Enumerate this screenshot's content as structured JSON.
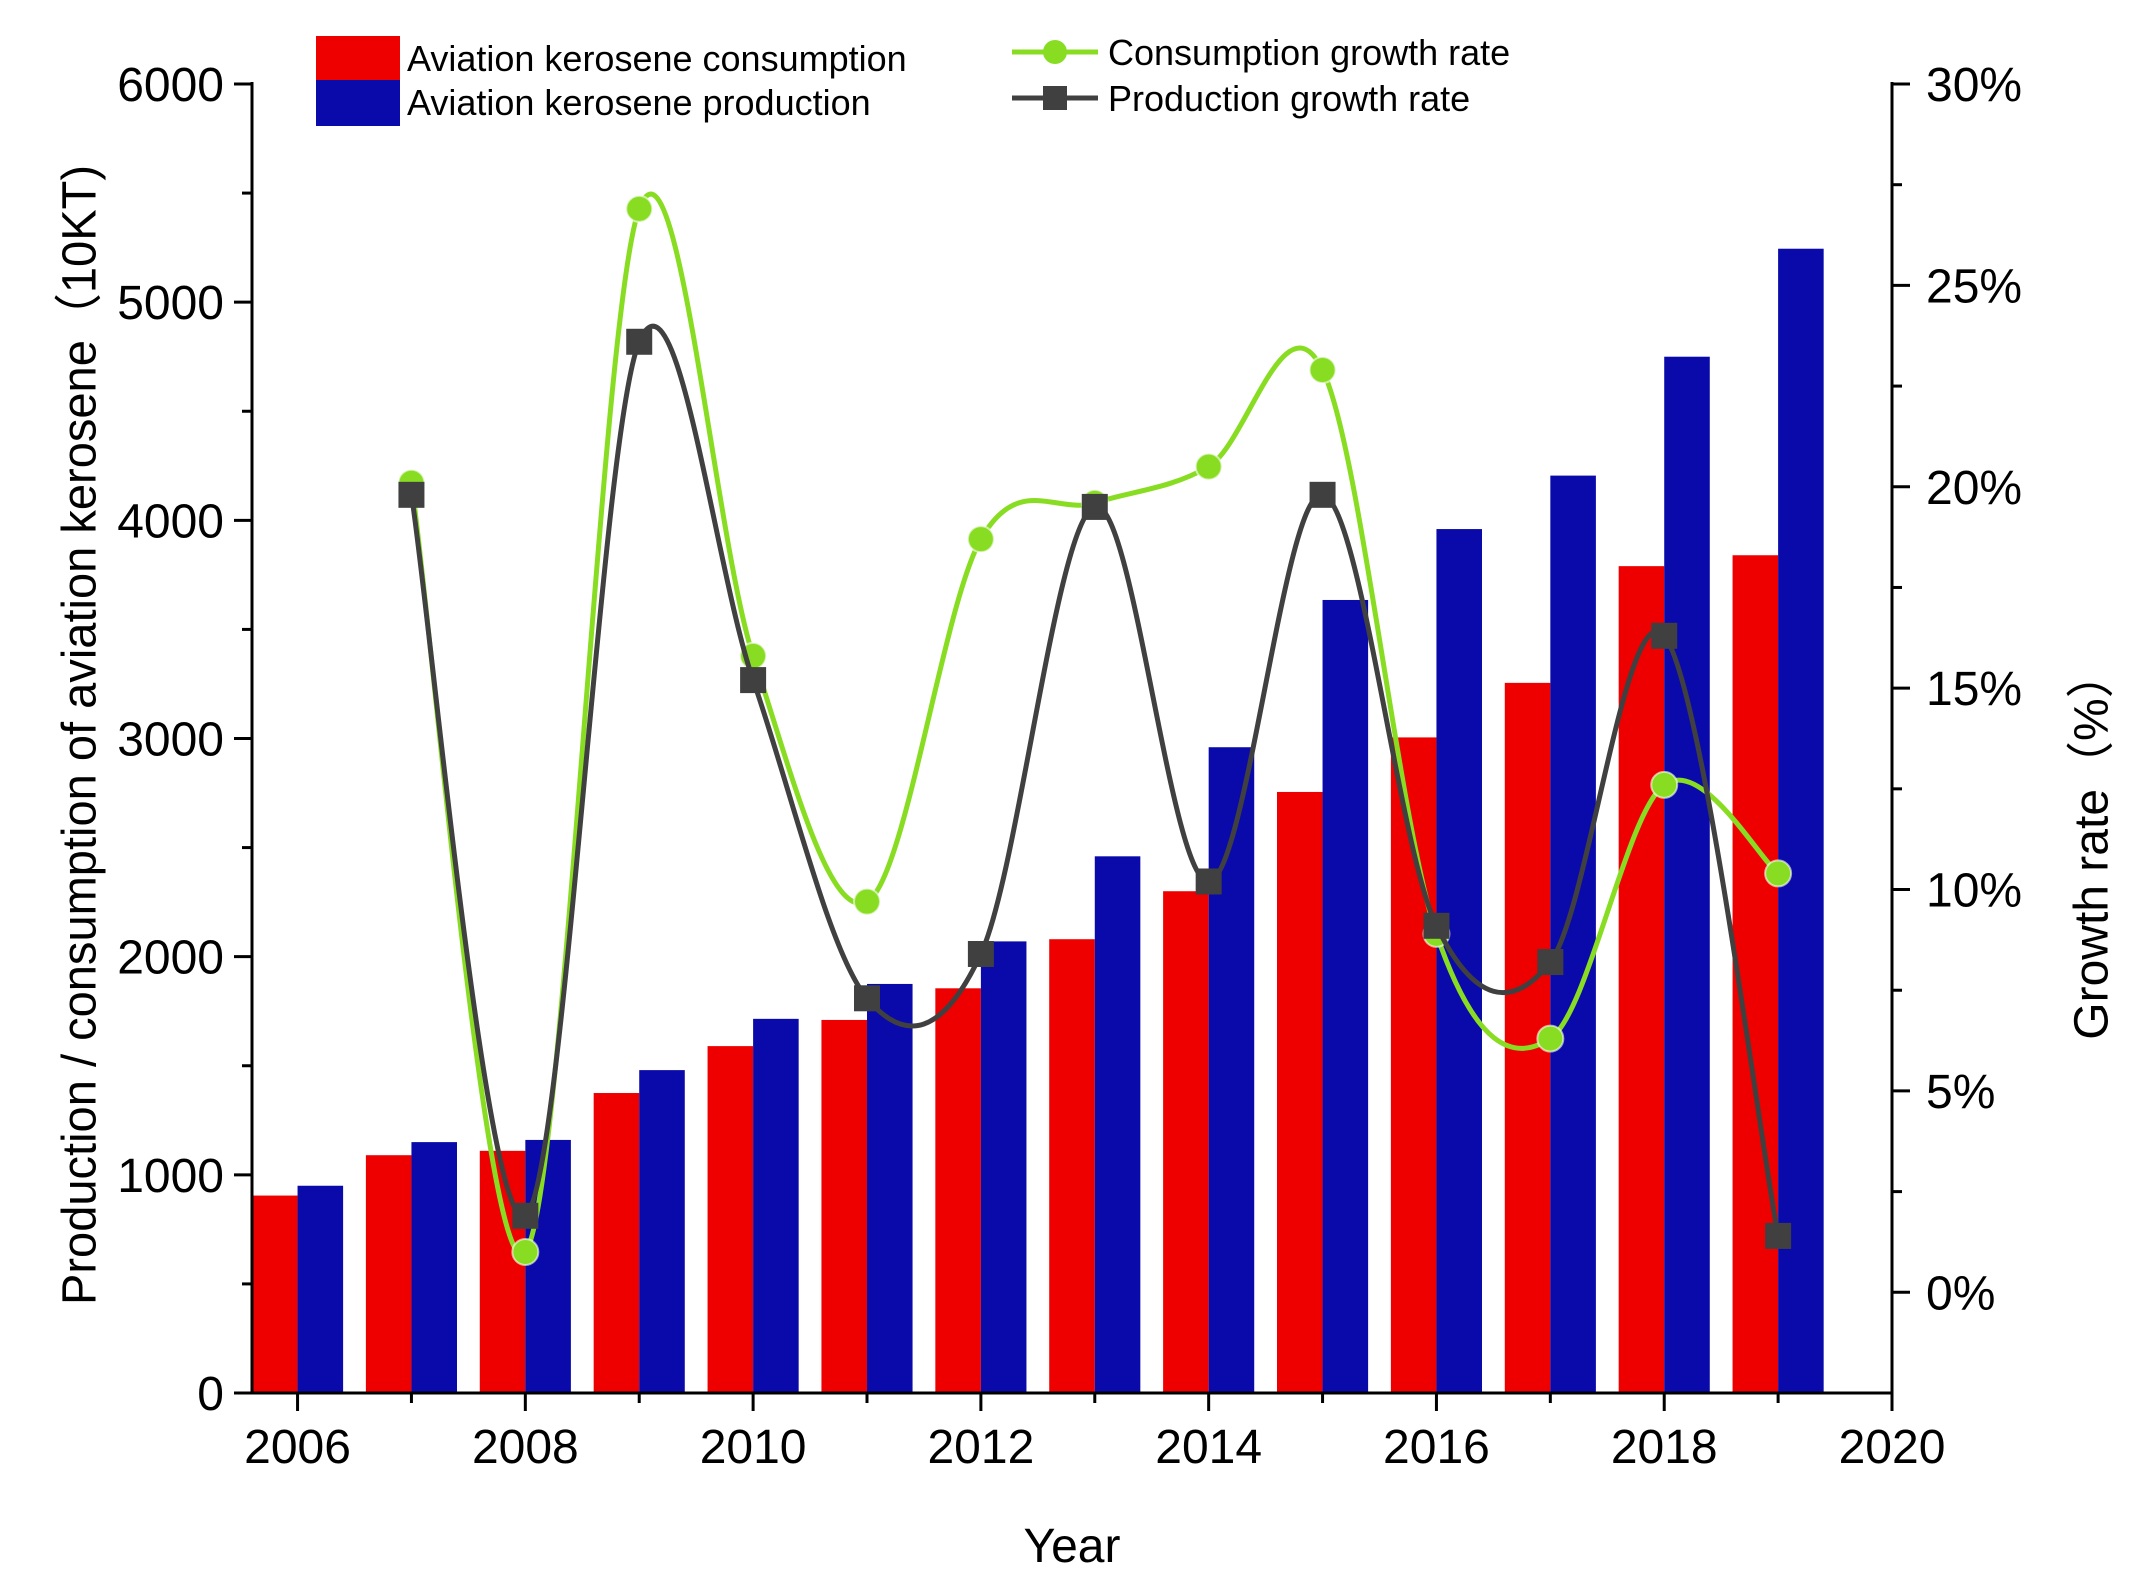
{
  "chart_data": {
    "type": "bar+line",
    "x_axis": {
      "label": "Year",
      "range": [
        2005.6,
        2020
      ],
      "ticks": [
        2006,
        2008,
        2010,
        2012,
        2014,
        2016,
        2018,
        2020
      ],
      "tick_labels": [
        "2006",
        "2008",
        "2010",
        "2012",
        "2014",
        "2016",
        "2018",
        "2020"
      ]
    },
    "y_left": {
      "label": "Production / consumption of aviation kerosene（10KT)",
      "range": [
        0,
        6000
      ],
      "ticks": [
        0,
        1000,
        2000,
        3000,
        4000,
        5000,
        6000
      ],
      "tick_labels": [
        "0",
        "1000",
        "2000",
        "3000",
        "4000",
        "5000",
        "6000"
      ]
    },
    "y_right": {
      "label": "Growth rate（%）",
      "range": [
        -2.5,
        30
      ],
      "ticks": [
        0,
        5,
        10,
        15,
        20,
        25,
        30
      ],
      "tick_labels": [
        "0%",
        "5%",
        "10%",
        "15%",
        "20%",
        "25%",
        "30%"
      ]
    },
    "categories": [
      2006,
      2007,
      2008,
      2009,
      2010,
      2011,
      2012,
      2013,
      2014,
      2015,
      2016,
      2017,
      2018,
      2019
    ],
    "bar_series": [
      {
        "name": "Aviation kerosene consumption",
        "color": "#ee0000",
        "values": [
          905,
          1090,
          1110,
          1375,
          1590,
          1710,
          1855,
          2080,
          2300,
          2755,
          3005,
          3255,
          3790,
          3840
        ]
      },
      {
        "name": "Aviation kerosene production",
        "color": "#0a0aaa",
        "values": [
          950,
          1150,
          1160,
          1480,
          1715,
          1875,
          2070,
          2460,
          2960,
          3635,
          3960,
          4205,
          4750,
          5245
        ]
      }
    ],
    "line_series": [
      {
        "name": "Consumption growth rate",
        "color": "#88dd22",
        "marker": "circle",
        "x": [
          2007,
          2008,
          2009,
          2010,
          2011,
          2012,
          2013,
          2014,
          2015,
          2016,
          2017,
          2018,
          2019
        ],
        "values": [
          20.1,
          1.0,
          26.9,
          15.8,
          9.7,
          18.7,
          19.6,
          20.5,
          22.9,
          8.9,
          6.3,
          12.6,
          10.4
        ]
      },
      {
        "name": "Production growth rate",
        "color": "#404040",
        "marker": "square",
        "x": [
          2007,
          2008,
          2009,
          2010,
          2011,
          2012,
          2013,
          2014,
          2015,
          2016,
          2017,
          2018,
          2019
        ],
        "values": [
          19.8,
          1.9,
          23.6,
          15.2,
          7.3,
          8.4,
          19.5,
          10.2,
          19.8,
          9.1,
          8.2,
          16.3,
          1.4
        ]
      }
    ],
    "legend": {
      "position": "top",
      "items": [
        "Aviation kerosene consumption",
        "Aviation kerosene production",
        "Consumption growth rate",
        "Production growth rate"
      ]
    }
  }
}
